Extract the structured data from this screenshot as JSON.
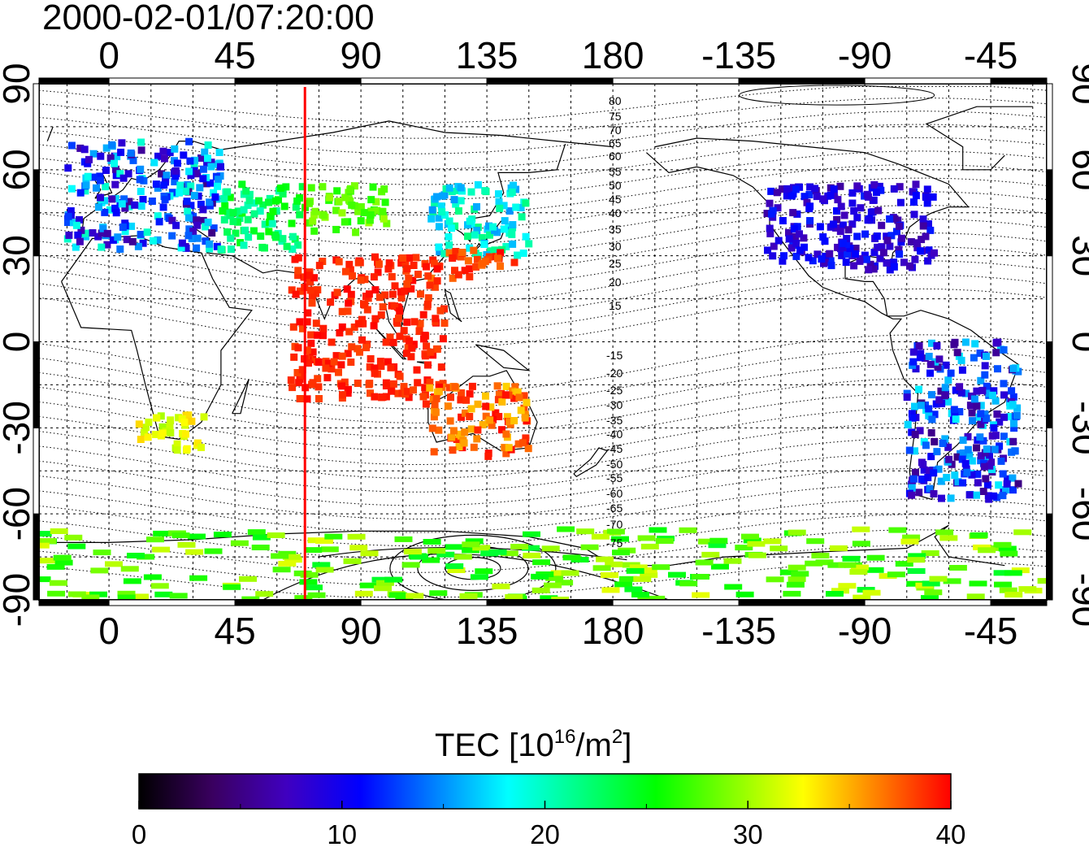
{
  "title": "2000-02-01/07:20:00",
  "lon_ticks": [
    "0",
    "45",
    "90",
    "135",
    "180",
    "-135",
    "-90",
    "-45"
  ],
  "lat_ticks": [
    "90",
    "60",
    "30",
    "0",
    "-30",
    "-60",
    "-90"
  ],
  "contour_labels_north": [
    "80",
    "75",
    "70",
    "65",
    "60",
    "55",
    "50",
    "45",
    "40",
    "35",
    "30",
    "25",
    "20",
    "15"
  ],
  "contour_labels_south": [
    "-15",
    "-20",
    "-25",
    "-30",
    "-35",
    "-40",
    "-45",
    "-50",
    "-55",
    "-60",
    "-65",
    "-70",
    "-75"
  ],
  "colorbar": {
    "title_prefix": "TEC  [10",
    "title_exp": "16",
    "title_mid": "/m",
    "title_exp2": "2",
    "title_suffix": "]",
    "ticks": [
      "0",
      "10",
      "20",
      "30",
      "40"
    ],
    "min": 0,
    "max": 40,
    "stops": [
      "#000000",
      "#3a0060",
      "#4000c0",
      "#0000ff",
      "#0080ff",
      "#00ffff",
      "#00ff80",
      "#00ff00",
      "#80ff00",
      "#ffff00",
      "#ff8000",
      "#ff0000"
    ]
  },
  "marker_line": {
    "longitude": 70,
    "color": "#ff0000"
  },
  "chart_data": {
    "type": "heatmap",
    "title": "2000-02-01/07:20:00",
    "xlim": [
      -25,
      335
    ],
    "ylim": [
      -90,
      90
    ],
    "colorbar_label": "TEC [10^16/m^2]",
    "colorbar_range": [
      0,
      40
    ],
    "regions": [
      {
        "lon": [
          -15,
          40
        ],
        "lat": [
          32,
          70
        ],
        "tec": [
          5,
          20
        ]
      },
      {
        "lon": [
          40,
          70
        ],
        "lat": [
          32,
          55
        ],
        "tec": [
          20,
          26
        ]
      },
      {
        "lon": [
          70,
          100
        ],
        "lat": [
          38,
          55
        ],
        "tec": [
          26,
          30
        ]
      },
      {
        "lon": [
          115,
          150
        ],
        "lat": [
          30,
          55
        ],
        "tec": [
          15,
          22
        ]
      },
      {
        "lon": [
          115,
          145
        ],
        "lat": [
          22,
          32
        ],
        "tec": [
          36,
          40
        ]
      },
      {
        "lon": [
          65,
          120
        ],
        "lat": [
          -20,
          30
        ],
        "tec": [
          38,
          40
        ]
      },
      {
        "lon": [
          113,
          150
        ],
        "lat": [
          -40,
          -15
        ],
        "tec": [
          34,
          40
        ]
      },
      {
        "lon": [
          10,
          35
        ],
        "lat": [
          -38,
          -25
        ],
        "tec": [
          30,
          34
        ]
      },
      {
        "lon": [
          -125,
          -65
        ],
        "lat": [
          25,
          55
        ],
        "tec": [
          6,
          12
        ]
      },
      {
        "lon": [
          -75,
          -35
        ],
        "lat": [
          -55,
          0
        ],
        "tec": [
          5,
          18
        ]
      },
      {
        "lon": [
          -180,
          180
        ],
        "lat": [
          -90,
          -65
        ],
        "tec": [
          24,
          32
        ]
      }
    ]
  }
}
